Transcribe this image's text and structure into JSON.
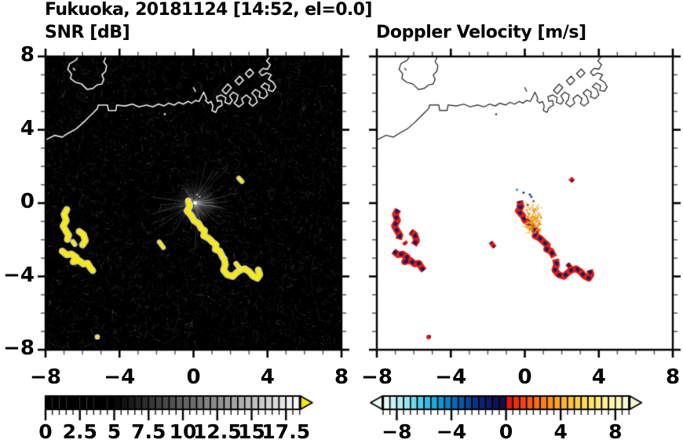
{
  "chart_data": {
    "type": "heatmap",
    "title": "Fukuoka, 20181124 [14:52, el=0.0]",
    "xlim": [
      -8,
      8
    ],
    "ylim": [
      -8,
      8
    ],
    "grid": false,
    "axis": {
      "major_ticks": [
        -8,
        -4,
        0,
        4,
        8
      ],
      "minor_step": 1,
      "xtick_labels": [
        "−8",
        "−4",
        "0",
        "4",
        "8"
      ],
      "ytick_labels": [
        "8",
        "4",
        "0",
        "−4",
        "−8"
      ],
      "ytick_values": [
        8,
        4,
        0,
        -4,
        -8
      ]
    },
    "panels": [
      {
        "id": "snr",
        "title": "SNR [dB]",
        "background": "#000000",
        "colorbar": {
          "min": 0,
          "max": 18.5,
          "block": 0.5,
          "black_until": 5,
          "label_values": [
            0,
            2.5,
            5,
            7.5,
            10,
            12.5,
            15,
            17.5
          ],
          "labels": [
            "0",
            "2.5",
            "5",
            "7.5",
            "10",
            "12.5",
            "15",
            "17.5"
          ],
          "major_step": 2.5,
          "minor_step": 0.5,
          "overflow_arrow_color": "#f6e70a"
        }
      },
      {
        "id": "doppler",
        "title": "Doppler Velocity [m/s]",
        "background": "#ffffff",
        "colorbar": {
          "min": -9,
          "max": 9,
          "block": 0.5,
          "label_values": [
            -8,
            -4,
            0,
            4,
            8
          ],
          "labels": [
            "−8",
            "−4",
            "0",
            "4",
            "8"
          ],
          "major_step": 4,
          "minor_step": 0.5,
          "neg_stops": [
            "#e2f8f6",
            "#c2f0f0",
            "#9ae4ee",
            "#6cd4ea",
            "#3fc0e4",
            "#1ba8da",
            "#0d8cc8",
            "#0a6cb4",
            "#0a4f9e",
            "#0b3588",
            "#0c2272",
            "#0d145c",
            "#0d1048"
          ],
          "pos_stops": [
            "#e2190f",
            "#ea3a11",
            "#f15713",
            "#f77214",
            "#fa8c1a",
            "#fda425",
            "#feb935",
            "#fecb49",
            "#fdda62",
            "#fce67e",
            "#fbef9a",
            "#f9f5b6",
            "#f8f9d0"
          ],
          "left_arrow_color": "#eafaf8",
          "right_arrow_color": "#f9fadc"
        }
      }
    ],
    "features": {
      "coastline_main": [
        [
          -8,
          3.45
        ],
        [
          -7.5,
          3.7
        ],
        [
          -7.1,
          3.6
        ],
        [
          -6.8,
          3.8
        ],
        [
          -6.35,
          4.05
        ],
        [
          -5.95,
          4.4
        ],
        [
          -5.55,
          4.8
        ],
        [
          -5.2,
          5.15
        ],
        [
          -5.15,
          5.35
        ],
        [
          -4.65,
          5.35
        ],
        [
          -4.6,
          5.05
        ],
        [
          -4.2,
          5.05
        ],
        [
          -4.15,
          5.35
        ],
        [
          -3.7,
          5.3
        ],
        [
          -3.3,
          5.4
        ],
        [
          -2.95,
          5.25
        ],
        [
          -2.55,
          5.35
        ],
        [
          -2.2,
          5.25
        ],
        [
          -1.9,
          5.4
        ],
        [
          -1.6,
          5.3
        ],
        [
          -1.35,
          5.45
        ],
        [
          -1.05,
          5.35
        ],
        [
          -0.8,
          5.5
        ],
        [
          -0.55,
          5.4
        ],
        [
          -0.3,
          5.55
        ],
        [
          -0.1,
          5.45
        ],
        [
          0.1,
          5.6
        ],
        [
          0.3,
          5.55
        ],
        [
          0.45,
          5.85
        ],
        [
          0.55,
          6.05
        ],
        [
          0.7,
          5.7
        ],
        [
          0.65,
          5.6
        ],
        [
          0.8,
          5.45
        ],
        [
          0.95,
          5.55
        ],
        [
          1.05,
          5.3
        ],
        [
          1.0,
          5.05
        ],
        [
          1.2,
          4.95
        ],
        [
          1.3,
          5.2
        ],
        [
          1.55,
          5.35
        ],
        [
          1.5,
          5.6
        ],
        [
          1.3,
          5.55
        ],
        [
          1.25,
          5.8
        ],
        [
          1.5,
          5.9
        ],
        [
          1.75,
          5.75
        ],
        [
          1.7,
          5.5
        ],
        [
          1.95,
          5.4
        ],
        [
          2.1,
          5.6
        ],
        [
          1.95,
          5.85
        ],
        [
          2.15,
          6.05
        ],
        [
          2.4,
          5.9
        ],
        [
          2.35,
          5.65
        ],
        [
          2.2,
          5.45
        ],
        [
          2.45,
          5.25
        ],
        [
          2.7,
          5.45
        ],
        [
          2.6,
          5.7
        ],
        [
          2.85,
          5.9
        ],
        [
          3.1,
          5.7
        ],
        [
          3.0,
          5.45
        ],
        [
          3.2,
          5.3
        ],
        [
          3.45,
          5.5
        ],
        [
          3.35,
          5.8
        ],
        [
          3.15,
          6.0
        ],
        [
          3.35,
          6.2
        ],
        [
          3.6,
          6.05
        ],
        [
          3.55,
          5.8
        ],
        [
          3.8,
          5.7
        ],
        [
          4.0,
          5.9
        ],
        [
          3.9,
          6.2
        ],
        [
          3.65,
          6.35
        ],
        [
          3.85,
          6.55
        ],
        [
          4.1,
          6.4
        ],
        [
          4.05,
          6.15
        ],
        [
          4.3,
          6.1
        ],
        [
          4.45,
          6.35
        ],
        [
          4.3,
          6.6
        ],
        [
          4.05,
          6.75
        ],
        [
          4.2,
          7.0
        ],
        [
          3.95,
          7.1
        ],
        [
          3.7,
          6.95
        ],
        [
          3.55,
          7.15
        ],
        [
          3.75,
          7.35
        ],
        [
          4.0,
          7.3
        ],
        [
          4.15,
          7.55
        ],
        [
          3.95,
          7.75
        ],
        [
          4.1,
          7.95
        ],
        [
          4.2,
          8.1
        ]
      ],
      "pier_rects": [
        [
          [
            2.45,
            6.45
          ],
          [
            2.7,
            6.7
          ],
          [
            2.5,
            6.92
          ],
          [
            2.25,
            6.67
          ],
          [
            2.45,
            6.45
          ]
        ],
        [
          [
            3.0,
            6.85
          ],
          [
            3.25,
            7.1
          ],
          [
            3.05,
            7.32
          ],
          [
            2.8,
            7.07
          ],
          [
            3.0,
            6.85
          ]
        ],
        [
          [
            1.75,
            5.95
          ],
          [
            2.05,
            6.3
          ],
          [
            1.85,
            6.5
          ],
          [
            1.55,
            6.15
          ],
          [
            1.75,
            5.95
          ]
        ]
      ],
      "island": [
        [
          -6.2,
          8.1
        ],
        [
          -6.35,
          7.8
        ],
        [
          -6.7,
          7.6
        ],
        [
          -6.8,
          7.3
        ],
        [
          -6.6,
          7.05
        ],
        [
          -6.65,
          6.8
        ],
        [
          -6.4,
          6.6
        ],
        [
          -6.05,
          6.5
        ],
        [
          -5.75,
          6.2
        ],
        [
          -5.45,
          6.25
        ],
        [
          -5.2,
          6.45
        ],
        [
          -4.95,
          6.5
        ],
        [
          -4.85,
          6.75
        ],
        [
          -4.95,
          7.0
        ],
        [
          -4.75,
          7.2
        ],
        [
          -4.7,
          7.5
        ],
        [
          -4.85,
          7.7
        ],
        [
          -4.75,
          7.95
        ],
        [
          -4.7,
          8.1
        ]
      ],
      "coast_specks": {
        "island_dash": [
          [
            -6.5,
            7.35
          ],
          [
            -6.42,
            7.26
          ]
        ],
        "harbor_dash": [
          [
            0.0,
            6.3
          ],
          [
            0.1,
            6.1
          ]
        ],
        "coast_dot": [
          -1.55,
          4.85
        ]
      },
      "echo_paths": [
        {
          "pts": [
            [
              -6.85,
              -0.35
            ],
            [
              -7.0,
              -0.62
            ],
            [
              -6.88,
              -0.95
            ],
            [
              -7.05,
              -1.25
            ],
            [
              -6.88,
              -1.55
            ],
            [
              -6.75,
              -1.75
            ],
            [
              -6.82,
              -1.98
            ]
          ],
          "w": 6
        },
        {
          "pts": [
            [
              -6.18,
              -1.55
            ],
            [
              -5.95,
              -1.72
            ],
            [
              -5.85,
              -2.05
            ],
            [
              -6.0,
              -2.28
            ]
          ],
          "w": 6
        },
        {
          "pts": [
            [
              -6.52,
              -2.1
            ],
            [
              -6.42,
              -2.25
            ]
          ],
          "w": 4
        },
        {
          "pts": [
            [
              -7.1,
              -2.62
            ],
            [
              -6.85,
              -2.82
            ],
            [
              -6.6,
              -2.78
            ],
            [
              -6.35,
              -2.95
            ],
            [
              -6.5,
              -3.2
            ],
            [
              -6.2,
              -3.12
            ],
            [
              -5.95,
              -3.32
            ],
            [
              -5.72,
              -3.28
            ],
            [
              -5.58,
              -3.52
            ],
            [
              -5.45,
              -3.68
            ]
          ],
          "w": 6
        },
        {
          "pts": [
            [
              -0.28,
              0.12
            ],
            [
              -0.2,
              -0.18
            ],
            [
              -0.35,
              -0.42
            ],
            [
              -0.12,
              -0.68
            ],
            [
              0.02,
              -0.95
            ],
            [
              0.28,
              -1.12
            ],
            [
              0.42,
              -1.38
            ],
            [
              0.6,
              -1.5
            ],
            [
              0.55,
              -1.78
            ],
            [
              0.82,
              -1.92
            ],
            [
              1.02,
              -2.12
            ],
            [
              1.22,
              -2.28
            ],
            [
              1.18,
              -2.52
            ],
            [
              1.42,
              -2.62
            ],
            [
              1.58,
              -2.95
            ]
          ],
          "w": 6
        },
        {
          "pts": [
            [
              1.66,
              -3.05
            ],
            [
              1.72,
              -3.35
            ],
            [
              1.62,
              -3.65
            ],
            [
              1.82,
              -3.9
            ],
            [
              2.12,
              -4.0
            ],
            [
              2.32,
              -3.8
            ],
            [
              2.52,
              -3.65
            ],
            [
              2.78,
              -3.58
            ],
            [
              3.02,
              -3.75
            ],
            [
              3.22,
              -3.98
            ],
            [
              3.45,
              -4.1
            ],
            [
              3.58,
              -3.9
            ],
            [
              3.5,
              -3.65
            ]
          ],
          "w": 6
        },
        {
          "pts": [
            [
              2.3,
              -3.3
            ],
            [
              2.47,
              -3.52
            ]
          ],
          "w": 4
        },
        {
          "pts": [
            [
              -1.85,
              -2.12
            ],
            [
              -1.63,
              -2.42
            ]
          ],
          "w": 3.5
        },
        {
          "pts": [
            [
              2.45,
              1.36
            ],
            [
              2.62,
              1.18
            ]
          ],
          "w": 3.5
        }
      ],
      "echo_dot": [
        -5.2,
        -7.3
      ],
      "radar": {
        "center": [
          0.08,
          0.02
        ],
        "ray_count": 150,
        "max_len_units": 2.5
      },
      "noise": {
        "seed": 20181124,
        "speckles": 3400,
        "arcs": 700,
        "bright_dots": 300,
        "gray": "#969696"
      },
      "doppler_only": {
        "orange_cloud": {
          "center": [
            0.45,
            -0.85
          ],
          "sx": 0.32,
          "sy": 0.55,
          "count": 170
        },
        "blue_specks": [
          [
            -0.48,
            0.78
          ],
          [
            -0.12,
            0.62
          ],
          [
            0.22,
            0.52
          ],
          [
            -0.38,
            0.1
          ],
          [
            -0.44,
            -0.1
          ],
          [
            0.3,
            0.4
          ]
        ],
        "red_specks": [
          [
            0.42,
            0.16
          ],
          [
            0.1,
            -0.05
          ]
        ]
      },
      "colors": {
        "snr_echo": "#f7ea12",
        "snr_echo_fringe": "#e3e3d6",
        "coast_snr": "#f0f0ee",
        "coast_doppler": "#1a1a1a",
        "doppler_pos_echo": "#df1d14",
        "doppler_neg_echo": "#151c62",
        "orange_palette": [
          "#f2a21a",
          "#eb8e0e",
          "#f7bc3f",
          "#e89a12"
        ],
        "blue_speck": "#14207a",
        "light_blue_speck": "#2e6fd8"
      }
    }
  }
}
